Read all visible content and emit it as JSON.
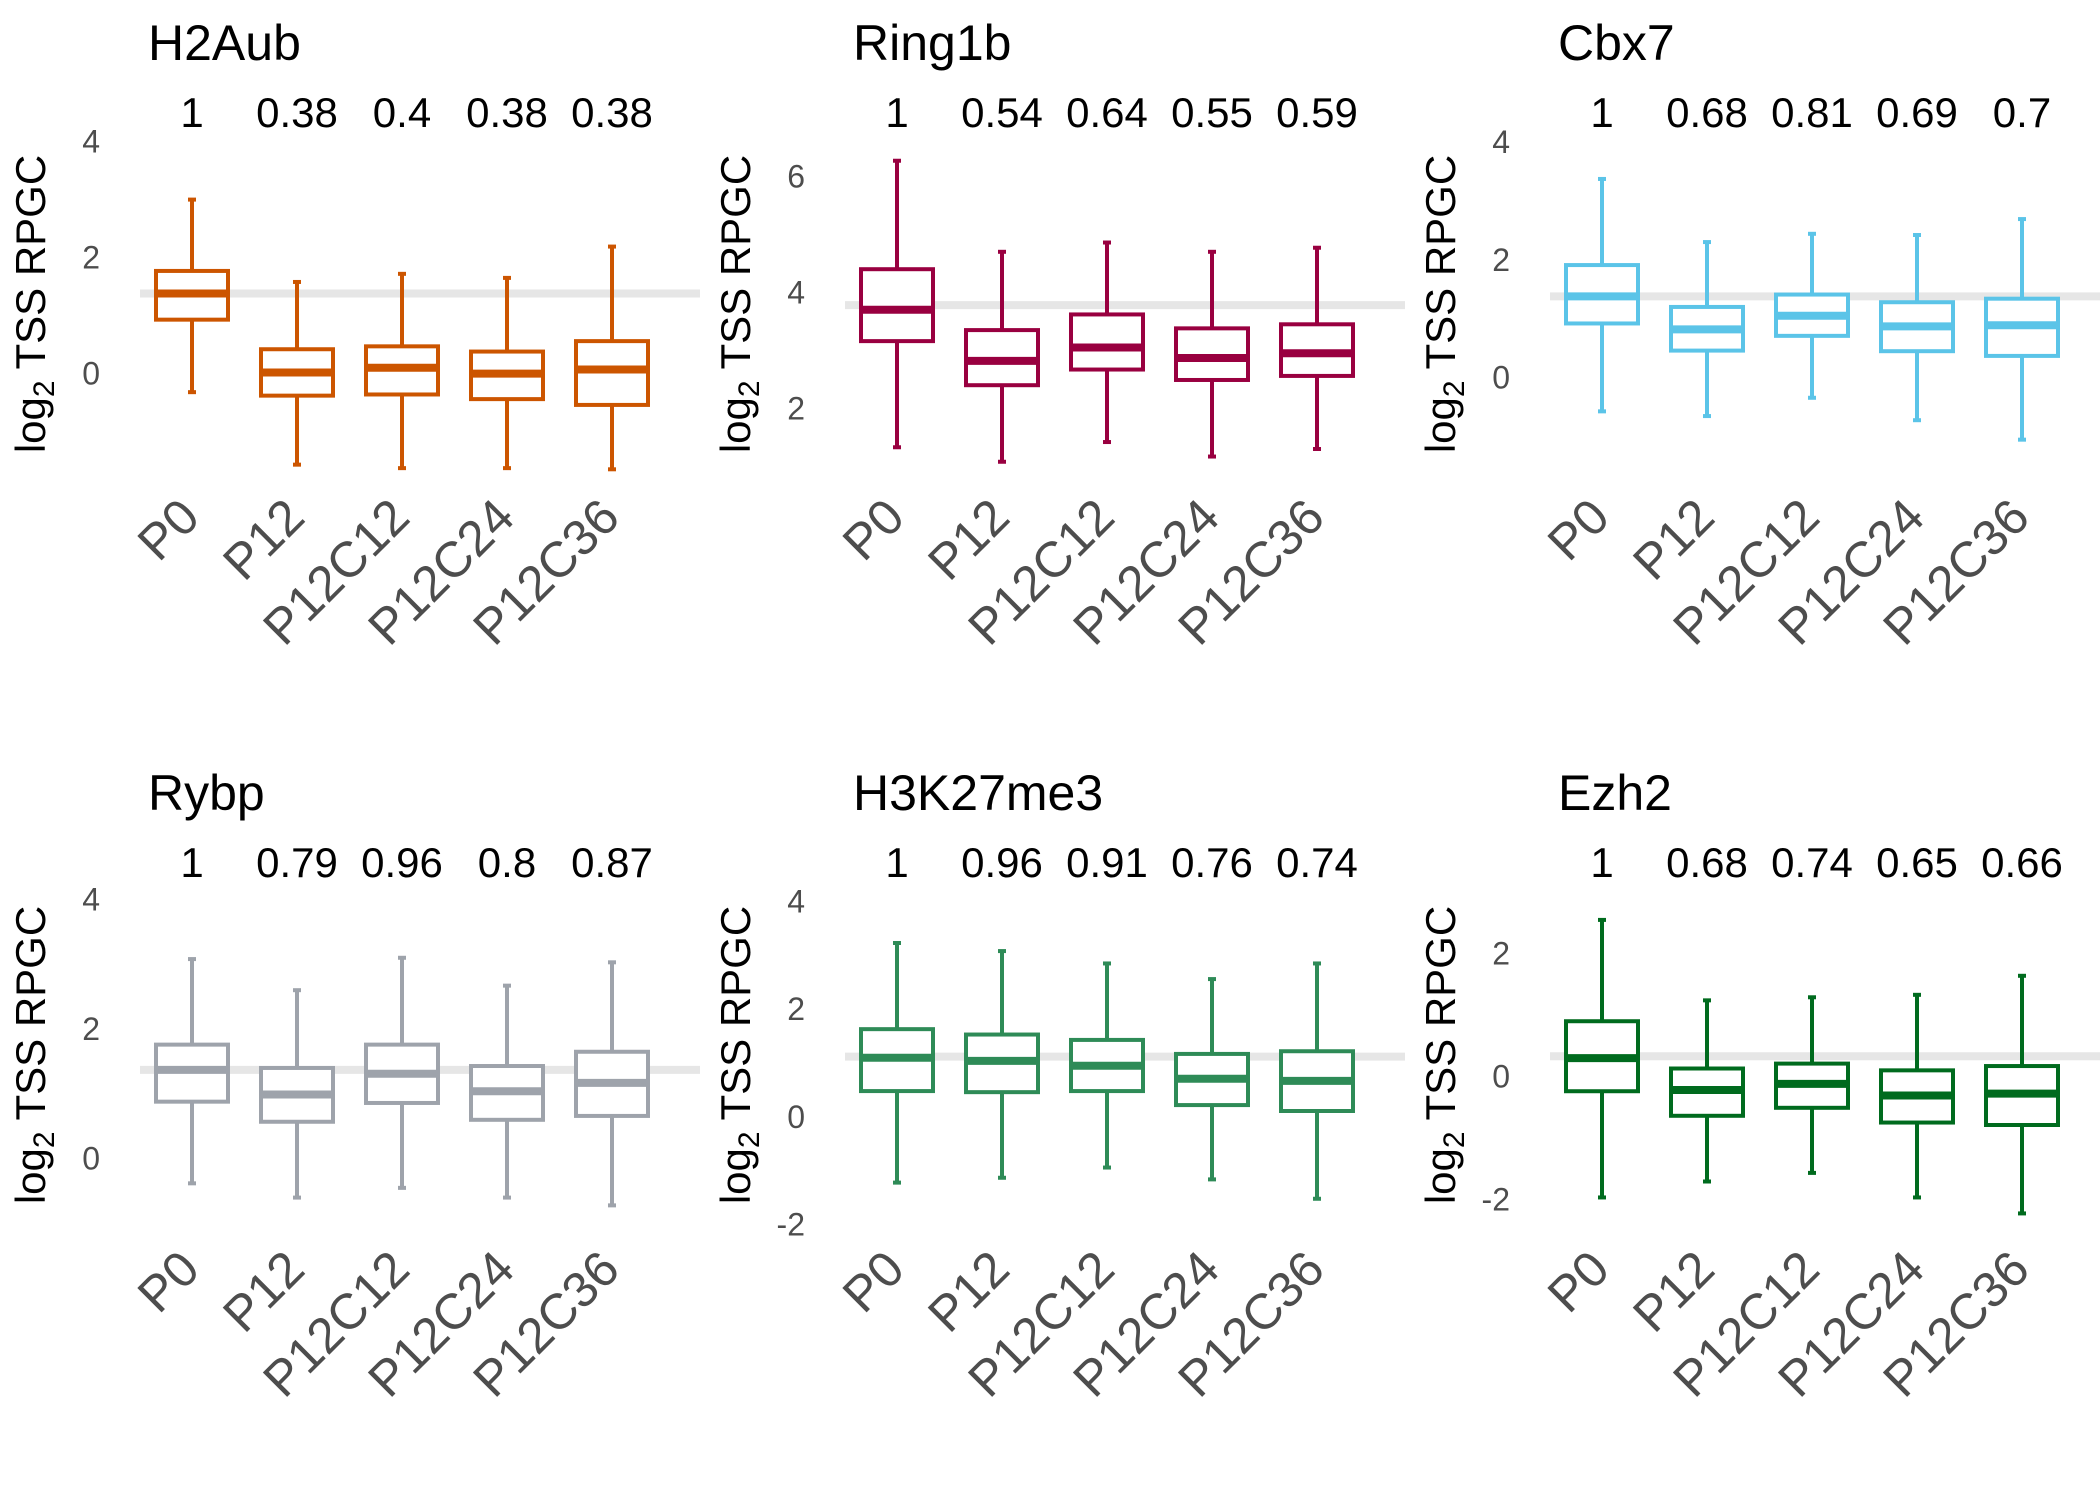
{
  "chart_data": [
    {
      "type": "box",
      "title": "H2Aub",
      "ylabel": {
        "prefix": "log",
        "sub": "2",
        "suffix": " TSS RPGC"
      },
      "color": "#CC5500",
      "yticks": [
        "0",
        "2",
        "4"
      ],
      "ylim": [
        -1.8,
        4.2
      ],
      "reference_line": 1.38,
      "categories": [
        "P0",
        "P12",
        "P12C12",
        "P12C24",
        "P12C36"
      ],
      "ratios": [
        "1",
        "0.38",
        "0.4",
        "0.38",
        "0.38"
      ],
      "boxes": [
        {
          "whisker_low": -0.32,
          "q1": 0.93,
          "median": 1.38,
          "q3": 1.77,
          "whisker_high": 3.0
        },
        {
          "whisker_low": -1.57,
          "q1": -0.38,
          "median": 0.02,
          "q3": 0.42,
          "whisker_high": 1.58
        },
        {
          "whisker_low": -1.63,
          "q1": -0.36,
          "median": 0.1,
          "q3": 0.47,
          "whisker_high": 1.72
        },
        {
          "whisker_low": -1.63,
          "q1": -0.44,
          "median": 0.0,
          "q3": 0.38,
          "whisker_high": 1.65
        },
        {
          "whisker_low": -1.65,
          "q1": -0.54,
          "median": 0.07,
          "q3": 0.56,
          "whisker_high": 2.19
        }
      ]
    },
    {
      "type": "box",
      "title": "Ring1b",
      "ylabel": {
        "prefix": "log",
        "sub": "2",
        "suffix": " TSS RPGC"
      },
      "color": "#990040",
      "yticks": [
        "2",
        "4",
        "6"
      ],
      "ylim": [
        0.8,
        6.8
      ],
      "reference_line": 3.78,
      "categories": [
        "P0",
        "P12",
        "P12C12",
        "P12C24",
        "P12C36"
      ],
      "ratios": [
        "1",
        "0.54",
        "0.64",
        "0.55",
        "0.59"
      ],
      "boxes": [
        {
          "whisker_low": 1.33,
          "q1": 3.16,
          "median": 3.7,
          "q3": 4.4,
          "whisker_high": 6.27
        },
        {
          "whisker_low": 1.08,
          "q1": 2.4,
          "median": 2.82,
          "q3": 3.35,
          "whisker_high": 4.7
        },
        {
          "whisker_low": 1.42,
          "q1": 2.67,
          "median": 3.05,
          "q3": 3.62,
          "whisker_high": 4.86
        },
        {
          "whisker_low": 1.17,
          "q1": 2.49,
          "median": 2.87,
          "q3": 3.38,
          "whisker_high": 4.7
        },
        {
          "whisker_low": 1.3,
          "q1": 2.56,
          "median": 2.95,
          "q3": 3.45,
          "whisker_high": 4.77
        }
      ]
    },
    {
      "type": "box",
      "title": "Cbx7",
      "ylabel": {
        "prefix": "log",
        "sub": "2",
        "suffix": " TSS RPGC"
      },
      "color": "#5BC4E8",
      "yticks": [
        "0",
        "2",
        "4"
      ],
      "ylim": [
        -1.7,
        4.2
      ],
      "reference_line": 1.38,
      "categories": [
        "P0",
        "P12",
        "P12C12",
        "P12C24",
        "P12C36"
      ],
      "ratios": [
        "1",
        "0.68",
        "0.81",
        "0.69",
        "0.7"
      ],
      "boxes": [
        {
          "whisker_low": -0.57,
          "q1": 0.92,
          "median": 1.38,
          "q3": 1.91,
          "whisker_high": 3.37
        },
        {
          "whisker_low": -0.65,
          "q1": 0.46,
          "median": 0.82,
          "q3": 1.2,
          "whisker_high": 2.3
        },
        {
          "whisker_low": -0.34,
          "q1": 0.71,
          "median": 1.05,
          "q3": 1.41,
          "whisker_high": 2.44
        },
        {
          "whisker_low": -0.72,
          "q1": 0.45,
          "median": 0.87,
          "q3": 1.28,
          "whisker_high": 2.42
        },
        {
          "whisker_low": -1.05,
          "q1": 0.37,
          "median": 0.89,
          "q3": 1.34,
          "whisker_high": 2.69
        }
      ]
    },
    {
      "type": "box",
      "title": "Rybp",
      "ylabel": {
        "prefix": "log",
        "sub": "2",
        "suffix": " TSS RPGC"
      },
      "color": "#9EA3AB",
      "yticks": [
        "0",
        "2",
        "4"
      ],
      "ylim": [
        -1.1,
        4.3
      ],
      "reference_line": 1.37,
      "categories": [
        "P0",
        "P12",
        "P12C12",
        "P12C24",
        "P12C36"
      ],
      "ratios": [
        "1",
        "0.79",
        "0.96",
        "0.8",
        "0.87"
      ],
      "boxes": [
        {
          "whisker_low": -0.38,
          "q1": 0.88,
          "median": 1.37,
          "q3": 1.76,
          "whisker_high": 3.08
        },
        {
          "whisker_low": -0.6,
          "q1": 0.57,
          "median": 0.99,
          "q3": 1.4,
          "whisker_high": 2.6
        },
        {
          "whisker_low": -0.45,
          "q1": 0.86,
          "median": 1.31,
          "q3": 1.76,
          "whisker_high": 3.1
        },
        {
          "whisker_low": -0.6,
          "q1": 0.6,
          "median": 1.04,
          "q3": 1.43,
          "whisker_high": 2.67
        },
        {
          "whisker_low": -0.72,
          "q1": 0.66,
          "median": 1.17,
          "q3": 1.65,
          "whisker_high": 3.03
        }
      ]
    },
    {
      "type": "box",
      "title": "H3K27me3",
      "ylabel": {
        "prefix": "log",
        "sub": "2",
        "suffix": " TSS RPGC"
      },
      "color": "#2E8B57",
      "yticks": [
        "-2",
        "0",
        "2",
        "4"
      ],
      "ylim": [
        -2.1,
        4.4
      ],
      "reference_line": 1.12,
      "categories": [
        "P0",
        "P12",
        "P12C12",
        "P12C24",
        "P12C36"
      ],
      "ratios": [
        "1",
        "0.96",
        "0.91",
        "0.76",
        "0.74"
      ],
      "boxes": [
        {
          "whisker_low": -1.22,
          "q1": 0.48,
          "median": 1.1,
          "q3": 1.63,
          "whisker_high": 3.23
        },
        {
          "whisker_low": -1.13,
          "q1": 0.46,
          "median": 1.04,
          "q3": 1.53,
          "whisker_high": 3.08
        },
        {
          "whisker_low": -0.94,
          "q1": 0.48,
          "median": 0.95,
          "q3": 1.43,
          "whisker_high": 2.85
        },
        {
          "whisker_low": -1.16,
          "q1": 0.22,
          "median": 0.71,
          "q3": 1.17,
          "whisker_high": 2.56
        },
        {
          "whisker_low": -1.52,
          "q1": 0.11,
          "median": 0.67,
          "q3": 1.22,
          "whisker_high": 2.85
        }
      ]
    },
    {
      "type": "box",
      "title": "Ezh2",
      "ylabel": {
        "prefix": "log",
        "sub": "2",
        "suffix": " TSS RPGC"
      },
      "color": "#006B1E",
      "yticks": [
        "-2",
        "0",
        "2"
      ],
      "ylim": [
        -2.5,
        3.2
      ],
      "reference_line": 0.33,
      "categories": [
        "P0",
        "P12",
        "P12C12",
        "P12C24",
        "P12C36"
      ],
      "ratios": [
        "1",
        "0.68",
        "0.74",
        "0.65",
        "0.66"
      ],
      "boxes": [
        {
          "whisker_low": -1.97,
          "q1": -0.24,
          "median": 0.3,
          "q3": 0.9,
          "whisker_high": 2.55
        },
        {
          "whisker_low": -1.71,
          "q1": -0.64,
          "median": -0.22,
          "q3": 0.13,
          "whisker_high": 1.24
        },
        {
          "whisker_low": -1.57,
          "q1": -0.51,
          "median": -0.12,
          "q3": 0.21,
          "whisker_high": 1.29
        },
        {
          "whisker_low": -1.97,
          "q1": -0.75,
          "median": -0.31,
          "q3": 0.1,
          "whisker_high": 1.33
        },
        {
          "whisker_low": -2.23,
          "q1": -0.79,
          "median": -0.28,
          "q3": 0.17,
          "whisker_high": 1.64
        }
      ]
    }
  ]
}
